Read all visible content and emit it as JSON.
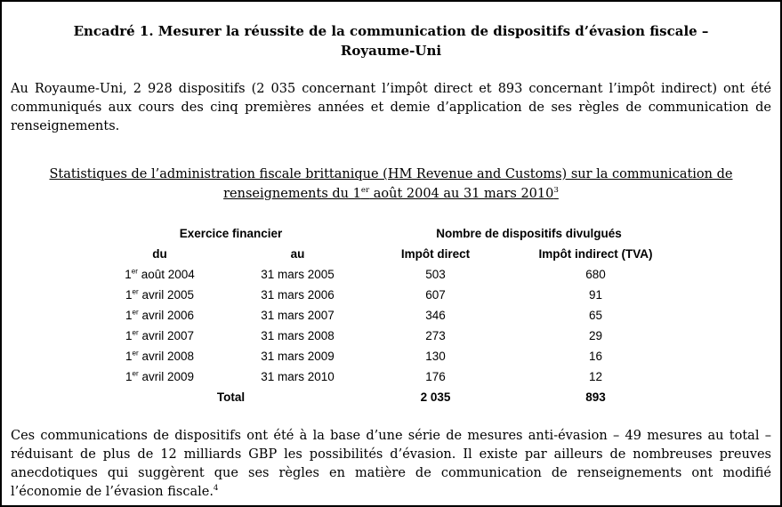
{
  "box": {
    "title": "Encadré 1. Mesurer la réussite de la communication de dispositifs d’évasion fiscale – Royaume-Uni",
    "intro": "Au Royaume-Uni, 2 928 dispositifs (2 035 concernant l’impôt direct et 893 concernant l’impôt indirect) ont été communiqués aux cours des cinq premières années et demie d’application de ses règles de communication de renseignements.",
    "closing": "Ces communications de dispositifs ont été à la base d’une série de mesures anti-évasion – 49 mesures au total – réduisant de plus de 12 milliards GBP les possibilités d’évasion. Il existe par ailleurs de nombreuses preuves anecdotiques qui suggèrent que ses règles en matière de communication de renseignements ont modifié l’économie de l’évasion fiscale.",
    "closing_footnote": "4"
  },
  "table": {
    "title_parts": {
      "text1": "Statistiques de l’administration fiscale brittanique (HM Revenue and Customs) sur la communication de renseignements du 1",
      "sup1": "er",
      "text2": " août 2004 au 31 mars 2010",
      "sup2": "3"
    },
    "group_headers": [
      "Exercice financier",
      "Nombre de dispositifs divulgués"
    ],
    "columns": [
      "du",
      "au",
      "Impôt direct",
      "Impôt indirect (TVA)"
    ],
    "rows": [
      {
        "du": [
          "1",
          "er",
          " août 2004"
        ],
        "au": "31 mars 2005",
        "direct": "503",
        "indirect": "680"
      },
      {
        "du": [
          "1",
          "er",
          " avril 2005"
        ],
        "au": "31 mars 2006",
        "direct": "607",
        "indirect": "91"
      },
      {
        "du": [
          "1",
          "er",
          " avril 2006"
        ],
        "au": "31 mars 2007",
        "direct": "346",
        "indirect": "65"
      },
      {
        "du": [
          "1",
          "er",
          " avril 2007"
        ],
        "au": "31 mars 2008",
        "direct": "273",
        "indirect": "29"
      },
      {
        "du": [
          "1",
          "er",
          " avril 2008"
        ],
        "au": "31 mars 2009",
        "direct": "130",
        "indirect": "16"
      },
      {
        "du": [
          "1",
          "er",
          " avril 2009"
        ],
        "au": "31 mars 2010",
        "direct": "176",
        "indirect": "12"
      }
    ],
    "total": {
      "label": "Total",
      "direct": "2 035",
      "indirect": "893"
    }
  }
}
